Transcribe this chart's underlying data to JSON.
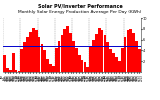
{
  "title1": "Solar PV/Inverter Performance",
  "title2": "Monthly Solar Energy Production Average Per Day (KWh)",
  "bar_values": [
    3.2,
    0.8,
    0.4,
    3.5,
    0.3,
    0.2,
    4.2,
    5.5,
    6.5,
    7.5,
    8.2,
    7.8,
    6.5,
    5.2,
    4.0,
    2.5,
    1.5,
    1.2,
    4.5,
    5.8,
    6.8,
    8.0,
    8.5,
    7.2,
    5.8,
    4.5,
    3.2,
    2.2,
    1.8,
    1.0,
    4.8,
    6.0,
    7.0,
    8.2,
    7.8,
    6.8,
    5.5,
    4.2,
    3.5,
    2.8,
    2.0,
    4.5,
    6.5,
    7.8,
    8.0,
    7.2,
    5.8,
    4.2
  ],
  "bar_color": "#ff0000",
  "avg_line_value": 4.8,
  "avg_line_color": "#0000cc",
  "background_color": "#ffffff",
  "ylim": [
    0,
    10
  ],
  "ytick_values": [
    2,
    4,
    6,
    8,
    10
  ],
  "ytick_labels": [
    "2",
    "4",
    "6",
    "8",
    "10"
  ],
  "grid_color": "#888888",
  "title_fontsize": 3.5,
  "tick_fontsize": 2.5,
  "n_bars": 48
}
